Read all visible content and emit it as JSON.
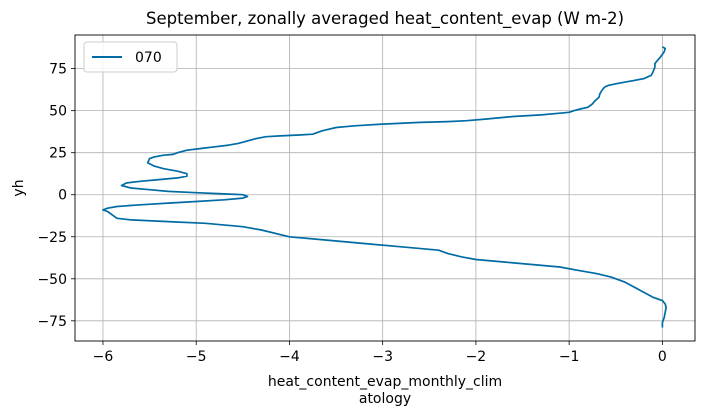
{
  "chart_data": {
    "type": "line",
    "title": "September, zonally averaged heat_content_evap (W m-2)",
    "xlabel_lines": [
      "heat_content_evap_monthly_clim",
      "atology"
    ],
    "ylabel": "yh",
    "xlim": [
      -6.3,
      0.35
    ],
    "ylim": [
      -87,
      95
    ],
    "xticks": [
      -6,
      -5,
      -4,
      -3,
      -2,
      -1,
      0
    ],
    "xtick_labels": [
      "−6",
      "−5",
      "−4",
      "−3",
      "−2",
      "−1",
      "0"
    ],
    "yticks": [
      -75,
      -50,
      -25,
      0,
      25,
      50,
      75
    ],
    "ytick_labels": [
      "−75",
      "−50",
      "−25",
      "0",
      "25",
      "50",
      "75"
    ],
    "grid": true,
    "legend_position": "upper-left",
    "series": [
      {
        "name": "070",
        "color": "#006ba4",
        "points": [
          [
            0.0,
            88
          ],
          [
            0.03,
            87
          ],
          [
            0.02,
            85
          ],
          [
            -0.02,
            82
          ],
          [
            -0.05,
            80
          ],
          [
            -0.08,
            78
          ],
          [
            -0.08,
            76
          ],
          [
            -0.1,
            73
          ],
          [
            -0.12,
            71
          ],
          [
            -0.2,
            69
          ],
          [
            -0.3,
            68
          ],
          [
            -0.4,
            67
          ],
          [
            -0.5,
            66
          ],
          [
            -0.58,
            65
          ],
          [
            -0.62,
            64
          ],
          [
            -0.65,
            62
          ],
          [
            -0.67,
            60
          ],
          [
            -0.68,
            58
          ],
          [
            -0.72,
            56
          ],
          [
            -0.75,
            54
          ],
          [
            -0.8,
            52
          ],
          [
            -0.88,
            51
          ],
          [
            -0.95,
            50
          ],
          [
            -1.0,
            49
          ],
          [
            -1.1,
            48.5
          ],
          [
            -1.3,
            47.5
          ],
          [
            -1.6,
            46.5
          ],
          [
            -1.9,
            45
          ],
          [
            -2.1,
            44
          ],
          [
            -2.3,
            43.5
          ],
          [
            -2.6,
            43
          ],
          [
            -3.0,
            42
          ],
          [
            -3.3,
            41
          ],
          [
            -3.5,
            40
          ],
          [
            -3.65,
            38
          ],
          [
            -3.75,
            36
          ],
          [
            -3.9,
            35.5
          ],
          [
            -4.1,
            35
          ],
          [
            -4.25,
            34.5
          ],
          [
            -4.35,
            33.5
          ],
          [
            -4.45,
            32
          ],
          [
            -4.55,
            30.5
          ],
          [
            -4.65,
            29.5
          ],
          [
            -4.8,
            28.5
          ],
          [
            -4.95,
            27.5
          ],
          [
            -5.1,
            26.5
          ],
          [
            -5.2,
            25
          ],
          [
            -5.25,
            24
          ],
          [
            -5.35,
            23.5
          ],
          [
            -5.45,
            22.5
          ],
          [
            -5.5,
            21.5
          ],
          [
            -5.52,
            19
          ],
          [
            -5.45,
            17
          ],
          [
            -5.35,
            15.5
          ],
          [
            -5.2,
            14
          ],
          [
            -5.1,
            12.5
          ],
          [
            -5.1,
            11
          ],
          [
            -5.2,
            10
          ],
          [
            -5.4,
            9
          ],
          [
            -5.6,
            8
          ],
          [
            -5.75,
            7
          ],
          [
            -5.8,
            5.5
          ],
          [
            -5.7,
            4
          ],
          [
            -5.5,
            3
          ],
          [
            -5.3,
            2
          ],
          [
            -5.0,
            1.2
          ],
          [
            -4.7,
            0.5
          ],
          [
            -4.5,
            0
          ],
          [
            -4.45,
            -1
          ],
          [
            -4.5,
            -2
          ],
          [
            -4.7,
            -3
          ],
          [
            -5.0,
            -4
          ],
          [
            -5.3,
            -5
          ],
          [
            -5.6,
            -6
          ],
          [
            -5.85,
            -7
          ],
          [
            -5.95,
            -8
          ],
          [
            -6.0,
            -9
          ],
          [
            -5.95,
            -10
          ],
          [
            -5.9,
            -12
          ],
          [
            -5.85,
            -14
          ],
          [
            -5.7,
            -15
          ],
          [
            -5.3,
            -16
          ],
          [
            -4.9,
            -17
          ],
          [
            -4.5,
            -19
          ],
          [
            -4.3,
            -21
          ],
          [
            -4.0,
            -25
          ],
          [
            -3.6,
            -27
          ],
          [
            -3.2,
            -29
          ],
          [
            -2.8,
            -31
          ],
          [
            -2.4,
            -33
          ],
          [
            -2.3,
            -35
          ],
          [
            -2.15,
            -37
          ],
          [
            -2.0,
            -38.5
          ],
          [
            -1.7,
            -40
          ],
          [
            -1.4,
            -41.5
          ],
          [
            -1.1,
            -43
          ],
          [
            -0.9,
            -45
          ],
          [
            -0.7,
            -47
          ],
          [
            -0.55,
            -49
          ],
          [
            -0.4,
            -52
          ],
          [
            -0.3,
            -55
          ],
          [
            -0.2,
            -58
          ],
          [
            -0.1,
            -61
          ],
          [
            0.0,
            -63
          ],
          [
            0.03,
            -65
          ],
          [
            0.04,
            -67
          ],
          [
            0.03,
            -70
          ],
          [
            0.02,
            -73
          ],
          [
            0.0,
            -76
          ],
          [
            0.0,
            -79
          ]
        ]
      }
    ]
  }
}
